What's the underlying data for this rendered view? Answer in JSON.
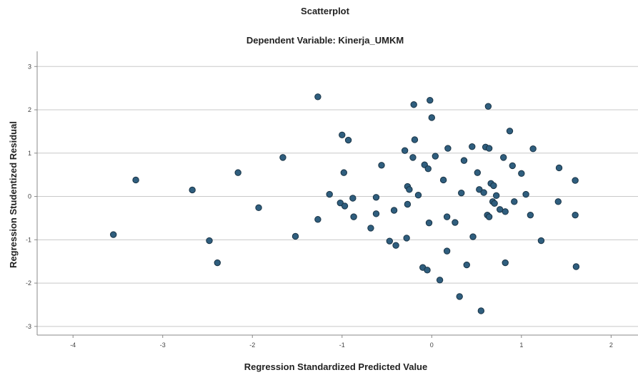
{
  "chart_data": {
    "type": "scatter",
    "title": "Scatterplot",
    "subtitle": "Dependent Variable: Kinerja_UMKM",
    "xlabel": "Regression Standardized Predicted Value",
    "ylabel": "Regression Studentized Residual",
    "xlim": [
      -4.4,
      2.3
    ],
    "ylim": [
      -3.2,
      3.35
    ],
    "xticks": [
      -4,
      -3,
      -2,
      -1,
      0,
      1,
      2
    ],
    "yticks": [
      -3,
      -2,
      -1,
      0,
      1,
      2,
      3
    ],
    "grid": "horizontal",
    "colors": {
      "point": "#2f5e7e",
      "point_edge": "#1a3446",
      "grid": "#c8c8c8",
      "axis": "#888888"
    },
    "points": [
      [
        -3.55,
        -0.88
      ],
      [
        -3.3,
        0.38
      ],
      [
        -2.67,
        0.15
      ],
      [
        -2.48,
        -1.02
      ],
      [
        -2.39,
        -1.53
      ],
      [
        -2.16,
        0.55
      ],
      [
        -1.93,
        -0.26
      ],
      [
        -1.66,
        0.9
      ],
      [
        -1.52,
        -0.92
      ],
      [
        -1.27,
        2.3
      ],
      [
        -1.27,
        -0.53
      ],
      [
        -1.14,
        0.05
      ],
      [
        -1.02,
        -0.15
      ],
      [
        -1.0,
        1.42
      ],
      [
        -0.98,
        0.55
      ],
      [
        -0.97,
        -0.22
      ],
      [
        -0.93,
        1.3
      ],
      [
        -0.88,
        -0.04
      ],
      [
        -0.87,
        -0.47
      ],
      [
        -0.68,
        -0.73
      ],
      [
        -0.62,
        -0.4
      ],
      [
        -0.62,
        -0.02
      ],
      [
        -0.56,
        0.72
      ],
      [
        -0.47,
        -1.03
      ],
      [
        -0.42,
        -0.32
      ],
      [
        -0.4,
        -1.13
      ],
      [
        -0.3,
        1.06
      ],
      [
        -0.28,
        -0.96
      ],
      [
        -0.27,
        -0.18
      ],
      [
        -0.27,
        0.23
      ],
      [
        -0.25,
        0.16
      ],
      [
        -0.21,
        0.9
      ],
      [
        -0.2,
        2.12
      ],
      [
        -0.19,
        1.31
      ],
      [
        -0.15,
        0.03
      ],
      [
        -0.1,
        -1.64
      ],
      [
        -0.08,
        0.73
      ],
      [
        -0.05,
        -1.7
      ],
      [
        -0.04,
        0.64
      ],
      [
        -0.03,
        -0.61
      ],
      [
        -0.02,
        2.22
      ],
      [
        0.0,
        1.82
      ],
      [
        0.04,
        0.93
      ],
      [
        0.09,
        -1.93
      ],
      [
        0.13,
        0.38
      ],
      [
        0.17,
        -1.26
      ],
      [
        0.17,
        -0.47
      ],
      [
        0.18,
        1.11
      ],
      [
        0.26,
        -0.6
      ],
      [
        0.31,
        -2.31
      ],
      [
        0.33,
        0.08
      ],
      [
        0.36,
        0.83
      ],
      [
        0.39,
        -1.58
      ],
      [
        0.45,
        1.15
      ],
      [
        0.46,
        -0.93
      ],
      [
        0.51,
        0.55
      ],
      [
        0.53,
        0.16
      ],
      [
        0.55,
        -2.64
      ],
      [
        0.58,
        0.09
      ],
      [
        0.6,
        1.14
      ],
      [
        0.62,
        -0.43
      ],
      [
        0.63,
        2.08
      ],
      [
        0.64,
        -0.47
      ],
      [
        0.64,
        1.11
      ],
      [
        0.66,
        0.3
      ],
      [
        0.68,
        -0.12
      ],
      [
        0.69,
        0.25
      ],
      [
        0.7,
        -0.16
      ],
      [
        0.72,
        0.02
      ],
      [
        0.76,
        -0.3
      ],
      [
        0.8,
        0.9
      ],
      [
        0.82,
        -0.35
      ],
      [
        0.82,
        -1.53
      ],
      [
        0.87,
        1.51
      ],
      [
        0.9,
        0.71
      ],
      [
        0.92,
        -0.12
      ],
      [
        1.0,
        0.53
      ],
      [
        1.05,
        0.05
      ],
      [
        1.1,
        -0.43
      ],
      [
        1.13,
        1.1
      ],
      [
        1.22,
        -1.02
      ],
      [
        1.41,
        -0.12
      ],
      [
        1.42,
        0.66
      ],
      [
        1.6,
        0.37
      ],
      [
        1.6,
        -0.43
      ],
      [
        1.61,
        -1.62
      ]
    ]
  }
}
